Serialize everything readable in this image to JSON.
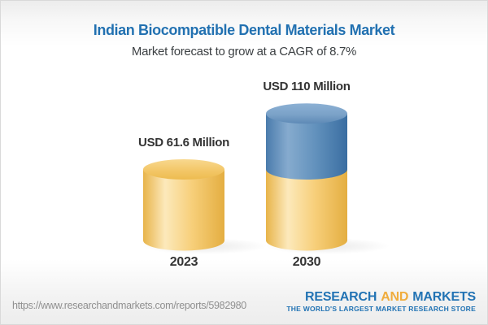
{
  "header": {
    "title": "Indian Biocompatible Dental Materials Market",
    "subtitle": "Market forecast to grow at a CAGR of 8.7%"
  },
  "chart_data": {
    "type": "bar",
    "subtype": "3d-cylinder",
    "title": "Indian Biocompatible Dental Materials Market",
    "subtitle": "Market forecast to grow at a CAGR of 8.7%",
    "unit": "USD Million",
    "cagr": "8.7%",
    "categories": [
      "2023",
      "2030"
    ],
    "values": [
      61.6,
      110
    ],
    "grid": "off",
    "legend": "none",
    "bars": [
      {
        "category": "2023",
        "value": 61.6,
        "label": "USD 61.6 Million",
        "segments": [
          {
            "value": 61.6,
            "color": "yellow"
          }
        ]
      },
      {
        "category": "2030",
        "value": 110,
        "label": "USD 110 Million",
        "segments": [
          {
            "value": 61.6,
            "color": "yellow"
          },
          {
            "value": 48.4,
            "color": "blue"
          }
        ]
      }
    ],
    "colors": {
      "yellow": "#F2C35F",
      "blue": "#4C80B1"
    }
  },
  "footer": {
    "url": "https://www.researchandmarkets.com/reports/5982980",
    "logo": {
      "part1": "RESEARCH",
      "part2": "AND",
      "part3": "MARKETS",
      "tagline": "THE WORLD'S LARGEST MARKET RESEARCH STORE"
    }
  },
  "theme": {
    "brand-blue": "#2273B4",
    "brand-gold": "#F0AC3C",
    "title-blue": "#2271B1",
    "text-dark": "#3C4043",
    "label-dark": "#333333",
    "url-gray": "#909090"
  }
}
